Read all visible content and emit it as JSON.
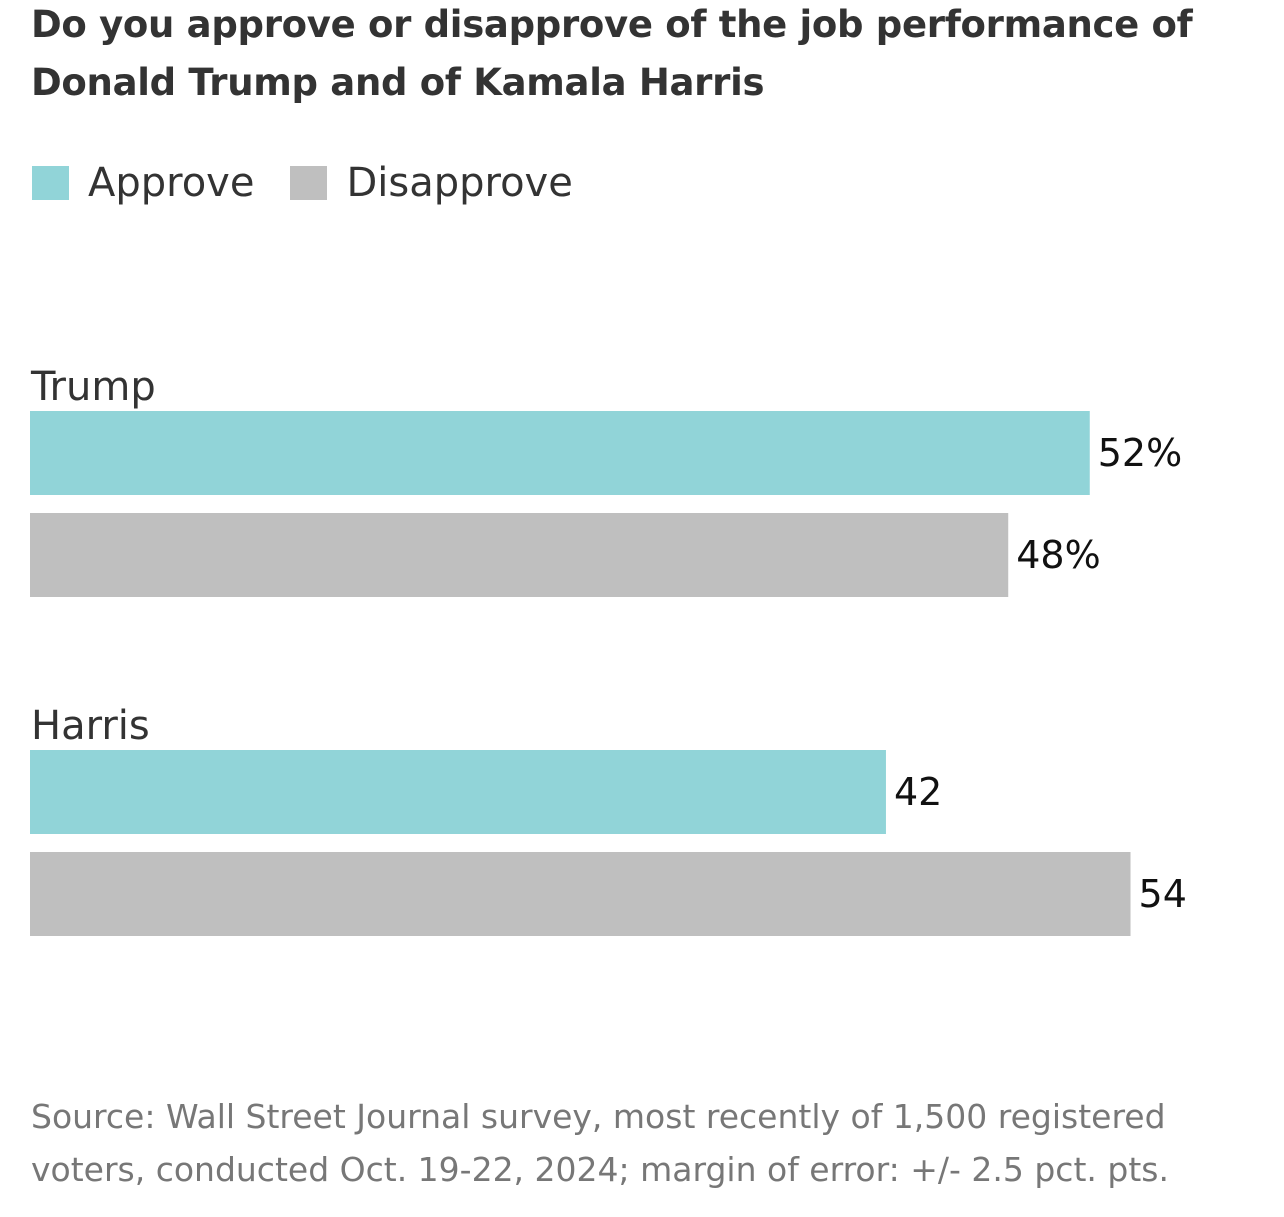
{
  "chart_data": {
    "type": "bar",
    "orientation": "horizontal",
    "title": "Do you approve or disapprove of the job performance of Donald Trump and of Kamala Harris",
    "categories": [
      "Trump",
      "Harris"
    ],
    "series": [
      {
        "name": "Approve",
        "color": "#91d4d8",
        "values": [
          52,
          42
        ],
        "labels": [
          "52%",
          "42"
        ]
      },
      {
        "name": "Disapprove",
        "color": "#bfbfbf",
        "values": [
          48,
          54
        ],
        "labels": [
          "48%",
          "54"
        ]
      }
    ],
    "xlim": [
      0,
      100
    ],
    "grid": false,
    "legend": "top-left",
    "source": "Source: Wall Street Journal survey, most recently of 1,500 registered voters, conducted Oct. 19-22, 2024; margin of error: +/- 2.5 pct. pts."
  }
}
